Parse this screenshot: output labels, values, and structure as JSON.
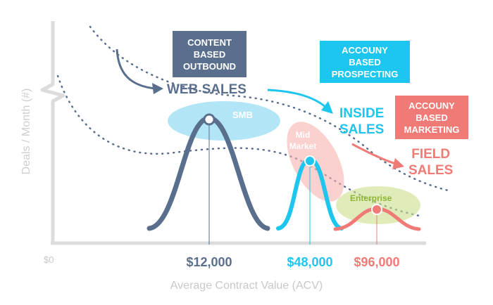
{
  "axes": {
    "y_label": "Deals / Month (#)",
    "x_label": "Average Contract Value (ACV)",
    "origin_label": "$0"
  },
  "x_ticks": [
    {
      "label": "$12,000",
      "color": "#5a6f8e"
    },
    {
      "label": "$48,000",
      "color": "#1cc6ee"
    },
    {
      "label": "$96,000",
      "color": "#f07a75"
    }
  ],
  "segments": [
    {
      "name": "SMB",
      "color": "#5a6f8e",
      "ellipse_color": "#7fd6f0"
    },
    {
      "name_line1": "Mid",
      "name_line2": "Market",
      "color": "#1cc6ee",
      "ellipse_color": "#f7b3ae"
    },
    {
      "name": "Enterprise",
      "color": "#f07a75",
      "ellipse_color": "#c9e08a"
    }
  ],
  "motions": [
    {
      "line1": "WEB SALES",
      "color": "#5a6f8e"
    },
    {
      "line1": "INSIDE",
      "line2": "SALES",
      "color": "#1cc6ee"
    },
    {
      "line1": "FIELD",
      "line2": "SALES",
      "color": "#f07a75"
    }
  ],
  "tactics": [
    {
      "lines": [
        "CONTENT",
        "BASED",
        "OUTBOUND"
      ],
      "color": "#5a6f8e"
    },
    {
      "lines": [
        "ACCOUNY",
        "BASED",
        "PROSPECTING"
      ],
      "color": "#1cc6ee"
    },
    {
      "lines": [
        "ACCOUNY",
        "BASED",
        "MARKETING"
      ],
      "color": "#f07a75"
    }
  ]
}
